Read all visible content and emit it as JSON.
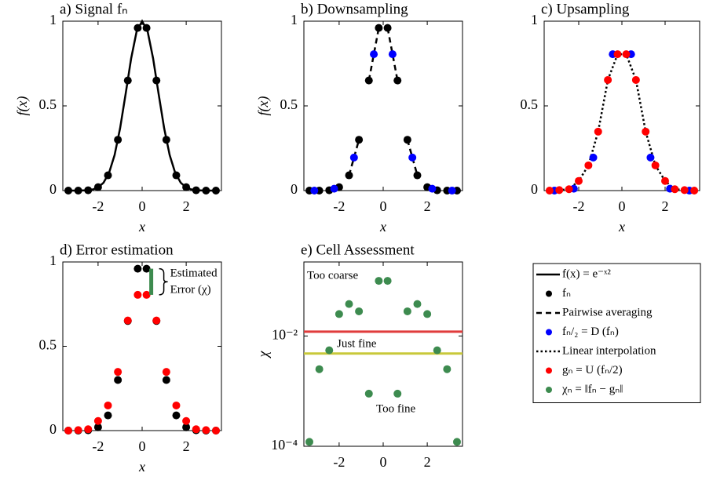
{
  "chart_data": [
    {
      "type": "scatter",
      "title": "a) Signal fₙ",
      "xlabel": "x",
      "ylabel": "f(x)",
      "xlim": [
        -3.6,
        3.6
      ],
      "ylim": [
        0,
        1
      ],
      "xticks": [
        -2,
        0,
        2
      ],
      "yticks": [
        0,
        0.5,
        1
      ],
      "series": [
        {
          "style": "line",
          "color": "#000000",
          "x": [
            -3.25,
            -3,
            -2.75,
            -2.5,
            -2.25,
            -2,
            -1.75,
            -1.5,
            -1.25,
            -1,
            -0.75,
            -0.5,
            -0.25,
            0,
            0.25,
            0.5,
            0.75,
            1,
            1.25,
            1.5,
            1.75,
            2,
            2.25,
            2.5,
            2.75,
            3,
            3.25
          ],
          "values": [
            0,
            0.0001,
            0.0005,
            0.0019,
            0.0063,
            0.0183,
            0.0468,
            0.1054,
            0.2096,
            0.3679,
            0.5698,
            0.7788,
            0.9394,
            1,
            0.9394,
            0.7788,
            0.5698,
            0.3679,
            0.2096,
            0.1054,
            0.0468,
            0.0183,
            0.0063,
            0.0019,
            0.0005,
            0.0001,
            0
          ]
        },
        {
          "style": "dots",
          "color": "#000000",
          "x": [
            -3.35,
            -2.9,
            -2.45,
            -2.0,
            -1.55,
            -1.1,
            -0.65,
            -0.2,
            0.2,
            0.65,
            1.1,
            1.55,
            2.0,
            2.45,
            2.9,
            3.35
          ],
          "values": [
            0,
            0,
            0.002,
            0.02,
            0.09,
            0.3,
            0.65,
            0.96,
            0.96,
            0.65,
            0.3,
            0.09,
            0.02,
            0.002,
            0,
            0
          ]
        }
      ]
    },
    {
      "type": "scatter",
      "title": "b) Downsampling",
      "xlabel": "x",
      "ylabel": "f(x)",
      "xlim": [
        -3.6,
        3.6
      ],
      "ylim": [
        0,
        1
      ],
      "xticks": [
        -2,
        0,
        2
      ],
      "yticks": [
        0,
        0.5,
        1
      ],
      "series": [
        {
          "style": "dashed",
          "color": "#000000",
          "x": [
            -3.35,
            -2.9,
            null,
            -2.45,
            -2.0,
            null,
            -1.55,
            -1.1,
            null,
            -0.65,
            -0.2,
            null,
            0.2,
            0.65,
            null,
            1.1,
            1.55,
            null,
            2.0,
            2.45,
            null,
            2.9,
            3.35
          ],
          "values": [
            0,
            0,
            null,
            0.002,
            0.02,
            null,
            0.09,
            0.3,
            null,
            0.65,
            0.96,
            null,
            0.96,
            0.65,
            null,
            0.3,
            0.09,
            null,
            0.02,
            0.002,
            null,
            0,
            0
          ]
        },
        {
          "style": "dots",
          "color": "#000000",
          "x": [
            -3.35,
            -2.9,
            -2.45,
            -2.0,
            -1.55,
            -1.1,
            -0.65,
            -0.2,
            0.2,
            0.65,
            1.1,
            1.55,
            2.0,
            2.45,
            2.9,
            3.35
          ],
          "values": [
            0,
            0,
            0.002,
            0.02,
            0.09,
            0.3,
            0.65,
            0.96,
            0.96,
            0.65,
            0.3,
            0.09,
            0.02,
            0.002,
            0,
            0
          ]
        },
        {
          "style": "dots",
          "color": "#0000ff",
          "x": [
            -3.125,
            -2.225,
            -1.325,
            -0.425,
            0.425,
            1.325,
            2.225,
            3.125
          ],
          "values": [
            0,
            0.011,
            0.195,
            0.805,
            0.805,
            0.195,
            0.011,
            0
          ]
        }
      ]
    },
    {
      "type": "scatter",
      "title": "c) Upsampling",
      "xlabel": "x",
      "xlim": [
        -3.6,
        3.6
      ],
      "ylim": [
        0,
        1
      ],
      "xticks": [
        -2,
        0,
        2
      ],
      "yticks": [
        0,
        0.5,
        1
      ],
      "series": [
        {
          "style": "dotted",
          "color": "#000000",
          "x": [
            -3.35,
            -2.9,
            -2.45,
            -2.0,
            -1.55,
            -1.1,
            -0.65,
            -0.2,
            0.2,
            0.65,
            1.1,
            1.55,
            2.0,
            2.45,
            2.9,
            3.35
          ],
          "values": [
            0,
            0.003,
            0.008,
            0.057,
            0.149,
            0.348,
            0.653,
            0.805,
            0.805,
            0.653,
            0.348,
            0.149,
            0.057,
            0.008,
            0.003,
            0
          ]
        },
        {
          "style": "dots",
          "color": "#0000ff",
          "x": [
            -3.125,
            -2.225,
            -1.325,
            -0.425,
            0.425,
            1.325,
            2.225,
            3.125
          ],
          "values": [
            0,
            0.011,
            0.195,
            0.805,
            0.805,
            0.195,
            0.011,
            0
          ]
        },
        {
          "style": "dots",
          "color": "#ff0000",
          "x": [
            -3.35,
            -2.9,
            -2.45,
            -2.0,
            -1.55,
            -1.1,
            -0.65,
            -0.2,
            0.2,
            0.65,
            1.1,
            1.55,
            2.0,
            2.45,
            2.9,
            3.35
          ],
          "values": [
            0,
            0.003,
            0.008,
            0.057,
            0.149,
            0.348,
            0.653,
            0.805,
            0.805,
            0.653,
            0.348,
            0.149,
            0.057,
            0.008,
            0.003,
            0
          ]
        }
      ]
    },
    {
      "type": "scatter",
      "title": "d) Error estimation",
      "xlabel": "x",
      "xlim": [
        -3.6,
        3.6
      ],
      "ylim": [
        0,
        1
      ],
      "xticks": [
        -2,
        0,
        2
      ],
      "yticks": [
        0,
        0.5,
        1
      ],
      "series": [
        {
          "style": "dots",
          "color": "#000000",
          "x": [
            -3.35,
            -2.9,
            -2.45,
            -2.0,
            -1.55,
            -1.1,
            -0.65,
            -0.2,
            0.2,
            0.65,
            1.1,
            1.55,
            2.0,
            2.45,
            2.9,
            3.35
          ],
          "values": [
            0,
            0,
            0.002,
            0.02,
            0.09,
            0.3,
            0.65,
            0.96,
            0.96,
            0.65,
            0.3,
            0.09,
            0.02,
            0.002,
            0,
            0
          ]
        },
        {
          "style": "dots",
          "color": "#ff0000",
          "x": [
            -3.35,
            -2.9,
            -2.45,
            -2.0,
            -1.55,
            -1.1,
            -0.65,
            -0.2,
            0.2,
            0.65,
            1.1,
            1.55,
            2.0,
            2.45,
            2.9,
            3.35
          ],
          "values": [
            0,
            0.003,
            0.008,
            0.057,
            0.149,
            0.348,
            0.653,
            0.805,
            0.805,
            0.653,
            0.348,
            0.149,
            0.057,
            0.008,
            0.003,
            0
          ]
        }
      ],
      "error_bar": {
        "x": 0.2,
        "from": 0.805,
        "to": 0.96,
        "color": "#3d8b4f"
      },
      "annotations": [
        "Estimated",
        "Error (χ)"
      ]
    },
    {
      "type": "scatter",
      "title": "e) Cell Assessment",
      "xlabel": "x",
      "ylabel": "χ",
      "xlim": [
        -3.6,
        3.6
      ],
      "ylim": [
        0.0001,
        0.22
      ],
      "ylog": true,
      "xticks": [
        -2,
        0,
        2
      ],
      "yticks": [
        {
          "value": 0.0001,
          "label": "10⁻⁴"
        },
        {
          "value": 0.01,
          "label": "10⁻²"
        }
      ],
      "series": [
        {
          "style": "dots",
          "color": "#3d8b4f",
          "x": [
            -3.35,
            -2.9,
            -2.45,
            -2.0,
            -1.55,
            -1.1,
            -0.65,
            -0.2,
            0.2,
            0.65,
            1.1,
            1.55,
            2.0,
            2.45,
            2.9,
            3.35
          ],
          "values": [
            0.00012,
            0.0025,
            0.0055,
            0.025,
            0.038,
            0.028,
            0.0009,
            0.1,
            0.1,
            0.0009,
            0.028,
            0.038,
            0.025,
            0.0055,
            0.0025,
            0.00012
          ]
        }
      ],
      "hlines": [
        {
          "value": 0.012,
          "color": "#e03c3c"
        },
        {
          "value": 0.0048,
          "color": "#c8c83a"
        }
      ],
      "annotations": [
        "Too coarse",
        "Just fine",
        "Too fine"
      ]
    }
  ],
  "legend": {
    "entries": [
      {
        "label": "f(x) = e⁻ˣ²",
        "style": "line",
        "color": "#000000"
      },
      {
        "label": "fₙ",
        "style": "dots",
        "color": "#000000"
      },
      {
        "label": "Pairwise averaging",
        "style": "dashed",
        "color": "#000000"
      },
      {
        "label": "fₙ/₂ = D (fₙ)",
        "style": "dots",
        "color": "#0000ff"
      },
      {
        "label": "Linear interpolation",
        "style": "dotted",
        "color": "#000000"
      },
      {
        "label": "gₙ = U (fₙ/2)",
        "style": "dots",
        "color": "#ff0000"
      },
      {
        "label": "χₙ = ‖fₙ − gₙ‖",
        "style": "dots",
        "color": "#3d8b4f"
      }
    ]
  }
}
